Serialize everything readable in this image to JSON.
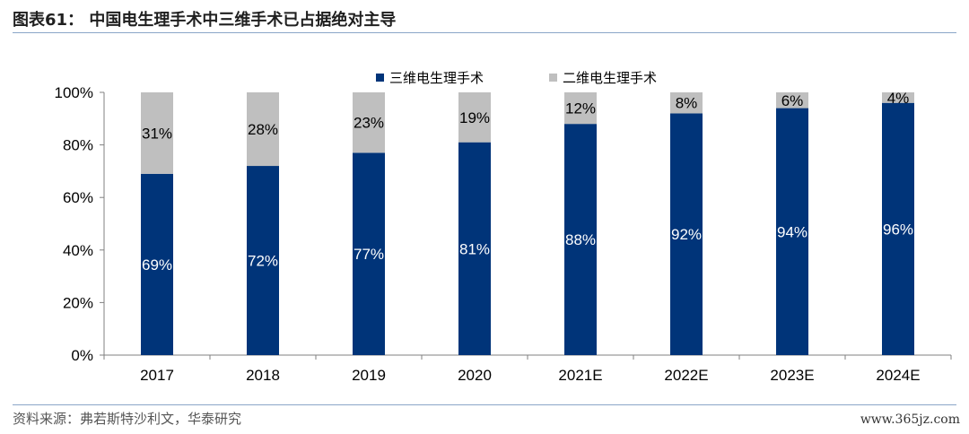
{
  "header": {
    "title": "图表61： 中国电生理手术中三维手术已占据绝对主导"
  },
  "footer": {
    "source": "资料来源：弗若斯特沙利文，华泰研究",
    "watermark": "www.365jz.com"
  },
  "colors": {
    "series_3d": "#003479",
    "series_2d": "#bfbfbf",
    "axis": "#808080",
    "rule": "#8aa6c8"
  },
  "chart_data": {
    "type": "bar",
    "stacked": true,
    "categories": [
      "2017",
      "2018",
      "2019",
      "2020",
      "2021E",
      "2022E",
      "2023E",
      "2024E"
    ],
    "series": [
      {
        "name": "三维电生理手术",
        "values": [
          69,
          72,
          77,
          81,
          88,
          92,
          94,
          96
        ],
        "labels": [
          "69%",
          "72%",
          "77%",
          "81%",
          "88%",
          "92%",
          "94%",
          "96%"
        ]
      },
      {
        "name": "二维电生理手术",
        "values": [
          31,
          28,
          23,
          19,
          12,
          8,
          6,
          4
        ],
        "labels": [
          "31%",
          "28%",
          "23%",
          "19%",
          "12%",
          "8%",
          "6%",
          "4%"
        ]
      }
    ],
    "yticks": [
      "0%",
      "20%",
      "40%",
      "60%",
      "80%",
      "100%"
    ],
    "ylim": [
      0,
      100
    ],
    "legend_position": "top-right",
    "grid": false
  }
}
